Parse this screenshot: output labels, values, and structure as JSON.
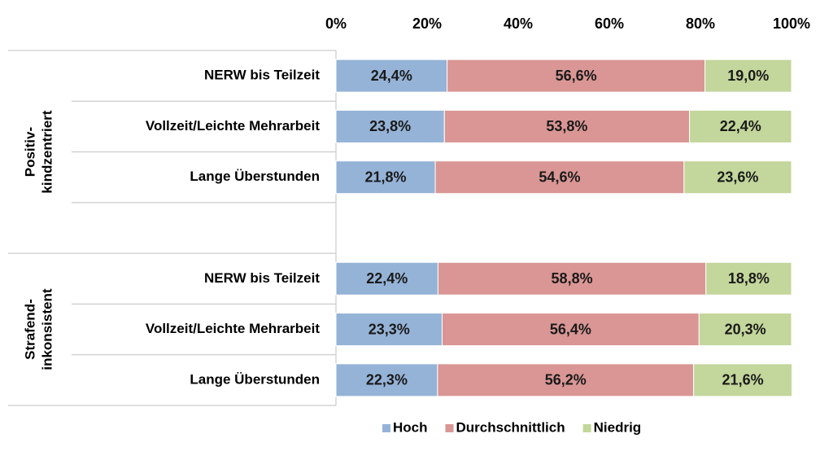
{
  "chart_data": {
    "type": "stacked-bar-horizontal",
    "categories": [
      "NERW bis Teilzeit",
      "Vollzeit/Leichte Mehrarbeit",
      "Lange Überstunden",
      null,
      "NERW bis Teilzeit",
      "Vollzeit/Leichte Mehrarbeit",
      "Lange Überstunden"
    ],
    "groups": [
      [
        "Positiv-",
        "kindzentriert"
      ],
      [
        "Strafend-",
        "inkonsistent"
      ]
    ],
    "series": [
      {
        "name": "Hoch",
        "color": "#95b3d7",
        "values": [
          24.4,
          23.8,
          21.8,
          null,
          22.4,
          23.3,
          22.3
        ],
        "value_labels": [
          "24,4%",
          "23,8%",
          "21,8%",
          null,
          "22,4%",
          "23,3%",
          "22,3%"
        ]
      },
      {
        "name": "Durchschnittlich",
        "color": "#d99694",
        "values": [
          56.6,
          53.8,
          54.6,
          null,
          58.8,
          56.4,
          56.2
        ],
        "value_labels": [
          "56,6%",
          "53,8%",
          "54,6%",
          null,
          "58,8%",
          "56,4%",
          "56,2%"
        ]
      },
      {
        "name": "Niedrig",
        "color": "#c3d69b",
        "values": [
          19.0,
          22.4,
          23.6,
          null,
          18.8,
          20.3,
          21.6
        ],
        "value_labels": [
          "19,0%",
          "22,4%",
          "23,6%",
          null,
          "18,8%",
          "20,3%",
          "21,6%"
        ]
      }
    ],
    "xlim": [
      0,
      100
    ],
    "xticks": [
      {
        "value": 0,
        "label": "0%"
      },
      {
        "value": 20,
        "label": "20%"
      },
      {
        "value": 40,
        "label": "40%"
      },
      {
        "value": 60,
        "label": "60%"
      },
      {
        "value": 80,
        "label": "80%"
      },
      {
        "value": 100,
        "label": "100%"
      }
    ],
    "legend": "bottom"
  }
}
